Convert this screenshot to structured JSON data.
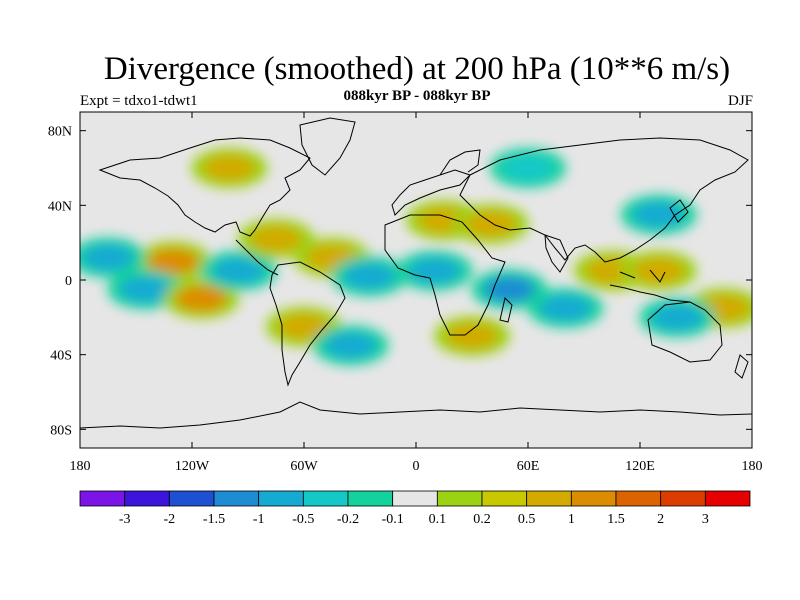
{
  "header": {
    "title": "Divergence (smoothed) at 200 hPa (10**6 m/s)",
    "subtitle": "088kyr BP - 088kyr BP",
    "left_label": "Expt = tdxo1-tdwt1",
    "right_label": "DJF"
  },
  "map": {
    "projection": "cylindrical-equidistant",
    "lon_range": [
      -180,
      180
    ],
    "lat_range": [
      -90,
      90
    ],
    "background_color": "#e6e6e6",
    "lat_ticks": [
      {
        "value": 80,
        "label": "80N"
      },
      {
        "value": 40,
        "label": "40N"
      },
      {
        "value": 0,
        "label": "0"
      },
      {
        "value": -40,
        "label": "40S"
      },
      {
        "value": -80,
        "label": "80S"
      }
    ],
    "lon_ticks": [
      {
        "value": -180,
        "label": "180"
      },
      {
        "value": -120,
        "label": "120W"
      },
      {
        "value": -60,
        "label": "60W"
      },
      {
        "value": 0,
        "label": "0"
      },
      {
        "value": 60,
        "label": "60E"
      },
      {
        "value": 120,
        "label": "120E"
      },
      {
        "value": 180,
        "label": "180"
      }
    ]
  },
  "colorbar": {
    "colors": [
      "#7b14e6",
      "#3c14dc",
      "#1e50d2",
      "#1e8cd2",
      "#14aad2",
      "#14c8c8",
      "#14d29b",
      "#e6e6e6",
      "#9bd214",
      "#c8c800",
      "#d2aa00",
      "#dc8c00",
      "#dc6400",
      "#dc3c00",
      "#e60000"
    ],
    "labels": [
      "-3",
      "-2",
      "-1.5",
      "-1",
      "-0.5",
      "-0.2",
      "-0.1",
      "0.1",
      "0.2",
      "0.5",
      "1",
      "1.5",
      "2",
      "3"
    ]
  },
  "chart_data": {
    "type": "heatmap",
    "variable": "200 hPa divergence difference (smoothed)",
    "units": "10**6 m/s",
    "season": "DJF",
    "x_range": [
      -180,
      180
    ],
    "y_range": [
      -90,
      90
    ],
    "features": [
      {
        "lon": -130,
        "lat": 10,
        "value": 1.0
      },
      {
        "lon": -165,
        "lat": 12,
        "value": -0.5
      },
      {
        "lon": -145,
        "lat": -5,
        "value": -0.5
      },
      {
        "lon": -115,
        "lat": -10,
        "value": 1.0
      },
      {
        "lon": -95,
        "lat": 5,
        "value": -0.5
      },
      {
        "lon": -75,
        "lat": 22,
        "value": 0.5
      },
      {
        "lon": -45,
        "lat": 12,
        "value": 0.5
      },
      {
        "lon": -25,
        "lat": 2,
        "value": -0.5
      },
      {
        "lon": -60,
        "lat": -25,
        "value": 0.5
      },
      {
        "lon": -35,
        "lat": -35,
        "value": -0.5
      },
      {
        "lon": 15,
        "lat": 32,
        "value": 0.5
      },
      {
        "lon": 10,
        "lat": 5,
        "value": -0.5
      },
      {
        "lon": 40,
        "lat": 30,
        "value": 0.5
      },
      {
        "lon": 50,
        "lat": -5,
        "value": -1.0
      },
      {
        "lon": 30,
        "lat": -30,
        "value": 0.5
      },
      {
        "lon": 80,
        "lat": -15,
        "value": -0.5
      },
      {
        "lon": 105,
        "lat": 5,
        "value": 0.5
      },
      {
        "lon": 130,
        "lat": 5,
        "value": 0.5
      },
      {
        "lon": 165,
        "lat": -15,
        "value": 0.5
      },
      {
        "lon": 130,
        "lat": 35,
        "value": -0.5
      },
      {
        "lon": 140,
        "lat": -20,
        "value": -0.5
      },
      {
        "lon": -100,
        "lat": 60,
        "value": 0.5
      },
      {
        "lon": 60,
        "lat": 60,
        "value": -0.2
      }
    ]
  }
}
